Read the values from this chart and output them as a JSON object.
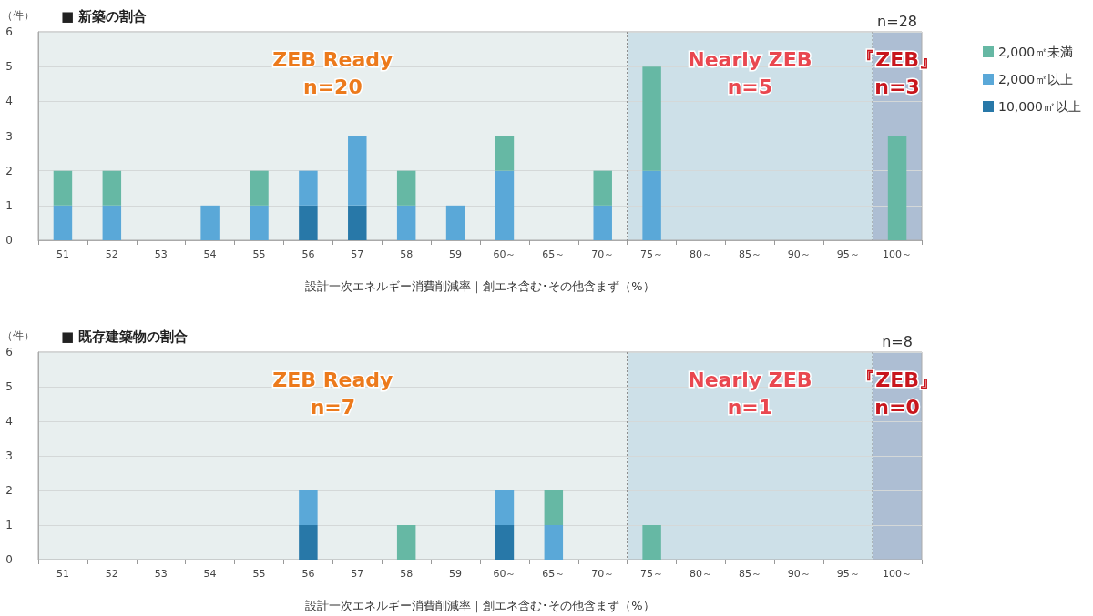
{
  "chart_data": [
    {
      "type": "bar",
      "title": "■ 新築の割合",
      "ylabel": "（件）",
      "xlabel": "設計一次エネルギー消費削減率｜創エネ含む･その他含まず（%）",
      "categories": [
        "51",
        "52",
        "53",
        "54",
        "55",
        "56",
        "57",
        "58",
        "59",
        "60～",
        "65～",
        "70～",
        "75～",
        "80～",
        "85～",
        "90～",
        "95～",
        "100～"
      ],
      "series": [
        {
          "name": "10,000㎡以上",
          "color": "#2878a8",
          "values": [
            0,
            0,
            0,
            0,
            0,
            1,
            1,
            0,
            0,
            0,
            0,
            0,
            0,
            0,
            0,
            0,
            0,
            0
          ]
        },
        {
          "name": "2,000㎡以上",
          "color": "#5aa8d8",
          "values": [
            1,
            1,
            0,
            1,
            1,
            1,
            2,
            1,
            1,
            2,
            0,
            1,
            2,
            0,
            0,
            0,
            0,
            0
          ]
        },
        {
          "name": "2,000㎡未満",
          "color": "#66b8a4",
          "values": [
            1,
            1,
            0,
            0,
            1,
            0,
            0,
            1,
            0,
            1,
            0,
            1,
            3,
            0,
            0,
            0,
            0,
            3
          ]
        }
      ],
      "stacked": true,
      "ylim": [
        0,
        6
      ],
      "yticks": [
        0,
        1,
        2,
        3,
        4,
        5,
        6
      ],
      "grid": "y",
      "legend": "right",
      "bands": [
        {
          "axis": "x",
          "from": "51",
          "to": "70～",
          "label": "ZEB Ready\nn=20",
          "color": "#e8efef"
        },
        {
          "axis": "x",
          "from": "75～",
          "to": "95～",
          "label": "Nearly ZEB\nn=5",
          "color": "#cde0e8"
        },
        {
          "axis": "x",
          "from": "100～",
          "to": "100～",
          "label": "『ZEB』\nn=3",
          "color": "#adbed3"
        }
      ],
      "annotations": [
        "n=28"
      ]
    },
    {
      "type": "bar",
      "title": "■ 既存建築物の割合",
      "ylabel": "（件）",
      "xlabel": "設計一次エネルギー消費削減率｜創エネ含む･その他含まず（%）",
      "categories": [
        "51",
        "52",
        "53",
        "54",
        "55",
        "56",
        "57",
        "58",
        "59",
        "60～",
        "65～",
        "70～",
        "75～",
        "80～",
        "85～",
        "90～",
        "95～",
        "100～"
      ],
      "series": [
        {
          "color": "#2878a8",
          "values": [
            0,
            0,
            0,
            0,
            0,
            1,
            0,
            0,
            0,
            1,
            0,
            0,
            0,
            0,
            0,
            0,
            0,
            0
          ]
        },
        {
          "color": "#5aa8d8",
          "values": [
            0,
            0,
            0,
            0,
            0,
            1,
            0,
            0,
            0,
            1,
            1,
            0,
            0,
            0,
            0,
            0,
            0,
            0
          ]
        },
        {
          "color": "#66b8a4",
          "values": [
            0,
            0,
            0,
            0,
            0,
            0,
            0,
            1,
            0,
            0,
            1,
            0,
            1,
            0,
            0,
            0,
            0,
            0
          ]
        }
      ],
      "stacked": true,
      "ylim": [
        0,
        6
      ],
      "yticks": [
        0,
        1,
        2,
        3,
        4,
        5,
        6
      ],
      "grid": "y",
      "legend": false,
      "bands": [
        {
          "axis": "x",
          "from": "51",
          "to": "70～",
          "label": "ZEB Ready\nn=7",
          "color": "#e8efef"
        },
        {
          "axis": "x",
          "from": "75～",
          "to": "95～",
          "label": "Nearly ZEB\nn=1",
          "color": "#cde0e8"
        },
        {
          "axis": "x",
          "from": "100～",
          "to": "100～",
          "label": "『ZEB』\nn=0",
          "color": "#adbed3"
        }
      ],
      "annotations": [
        "n=8"
      ]
    }
  ]
}
